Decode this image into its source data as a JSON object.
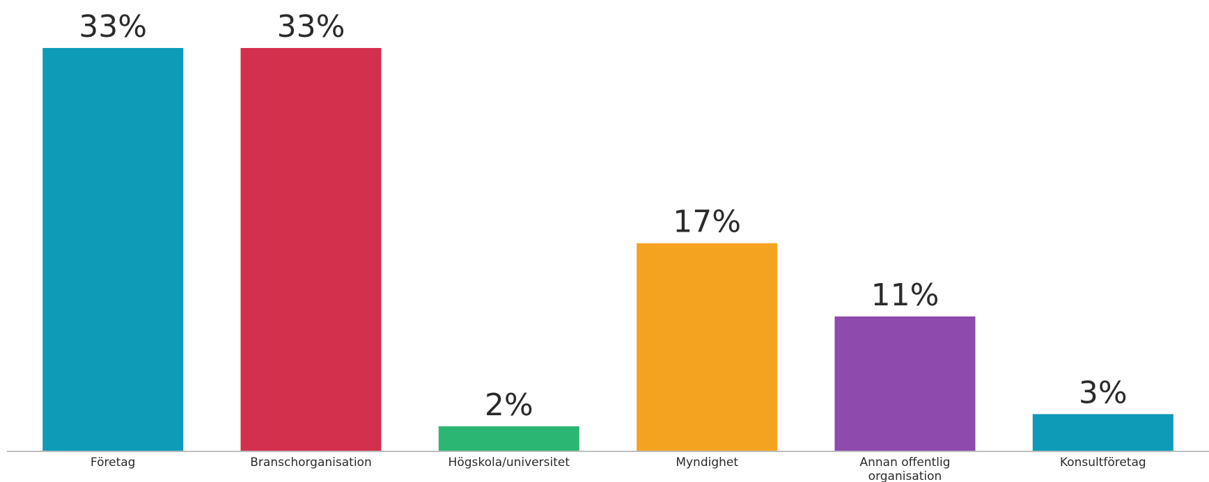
{
  "chart_data": {
    "type": "bar",
    "categories": [
      "Företag",
      "Branschorganisation",
      "Högskola/universitet",
      "Myndighet",
      "Annan offentlig organisation",
      "Konsultföretag"
    ],
    "category_lines": [
      [
        "Företag"
      ],
      [
        "Branschorganisation"
      ],
      [
        "Högskola/universitet"
      ],
      [
        "Myndighet"
      ],
      [
        "Annan offentlig",
        "organisation"
      ],
      [
        "Konsultföretag"
      ]
    ],
    "values": [
      33,
      33,
      2,
      17,
      11,
      3
    ],
    "value_labels": [
      "33%",
      "33%",
      "2%",
      "17%",
      "11%",
      "3%"
    ],
    "colors": [
      "#0e9bb8",
      "#d3304d",
      "#2bb673",
      "#f4a321",
      "#8e4aad",
      "#0e9bb8"
    ],
    "title": "",
    "xlabel": "",
    "ylabel": "",
    "ylim": [
      0,
      33
    ],
    "grid": false,
    "legend": "none"
  }
}
